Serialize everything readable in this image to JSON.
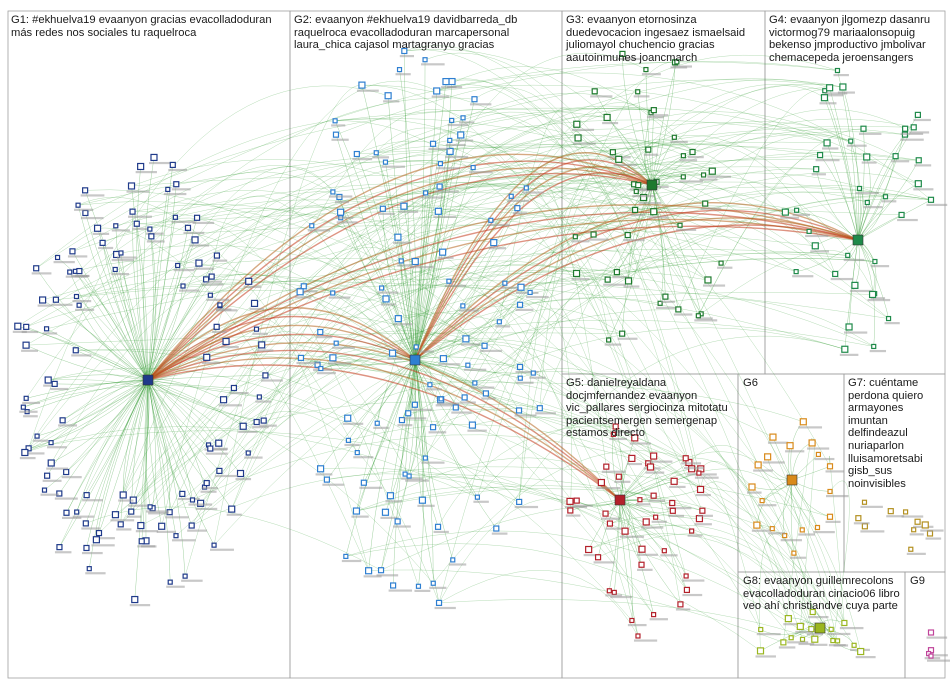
{
  "groups": [
    {
      "id": "G1",
      "label": "G1: #ekhuelva19 evaanyon gracias evacolladoduran\nmás redes nos sociales tu raquelroca",
      "color": "#1f3a8a",
      "count": 115
    },
    {
      "id": "G2",
      "label": "G2: evaanyon #ekhuelva19 davidbarreda_db\nraquelroca evacolladoduran marcapersonal\nlaura_chica cajasol martagranyo gracias",
      "color": "#2e7fd1",
      "count": 110
    },
    {
      "id": "G3",
      "label": "G3: evaanyon etornosinza\nduedevocacion ingesaez ismaelsaid\njuliomayol chuchencio gracias\naautoinmunes joancmarch",
      "color": "#1e7a2e",
      "count": 45
    },
    {
      "id": "G4",
      "label": "G4: evaanyon jlgomezp dasanru\nvictormog79 mariaalonsopuig\nbekenso jmproductivo jmbolivar\nchemacepeda jeroensangers",
      "color": "#1f8a4a",
      "count": 38
    },
    {
      "id": "G5",
      "label": "G5: danielreyaldana\ndocjmfernandez evaanyon\nvic_pallares sergiocinza mitotatu\npacientsemergen semergenap\nestamos directo",
      "color": "#b3202a",
      "count": 45
    },
    {
      "id": "G6",
      "label": "G6",
      "color": "#d98a1a",
      "count": 18
    },
    {
      "id": "G7",
      "label": "G7: cuéntame\nperdona quiero\narmayones\nimuntan\ndelfindeazul\nnuriaparlon\nlluisamoretsabi\ngisb_sus\nnoinvisibles",
      "color": "#b39020",
      "count": 10
    },
    {
      "id": "G8",
      "label": "G8: evaanyon guillemrecolons\nevacolladoduran cinacio06 libro\nveo ahí christiandve cuya parte",
      "color": "#9ab61f",
      "count": 16
    },
    {
      "id": "G9",
      "label": "G9",
      "color": "#c0449a",
      "count": 4
    }
  ],
  "style": {
    "edge_color": "#2f9a2f",
    "strong_edge_color": "#b5651d",
    "hub_edge_color": "#c23a1c",
    "border_color": "#a0a0a0"
  }
}
